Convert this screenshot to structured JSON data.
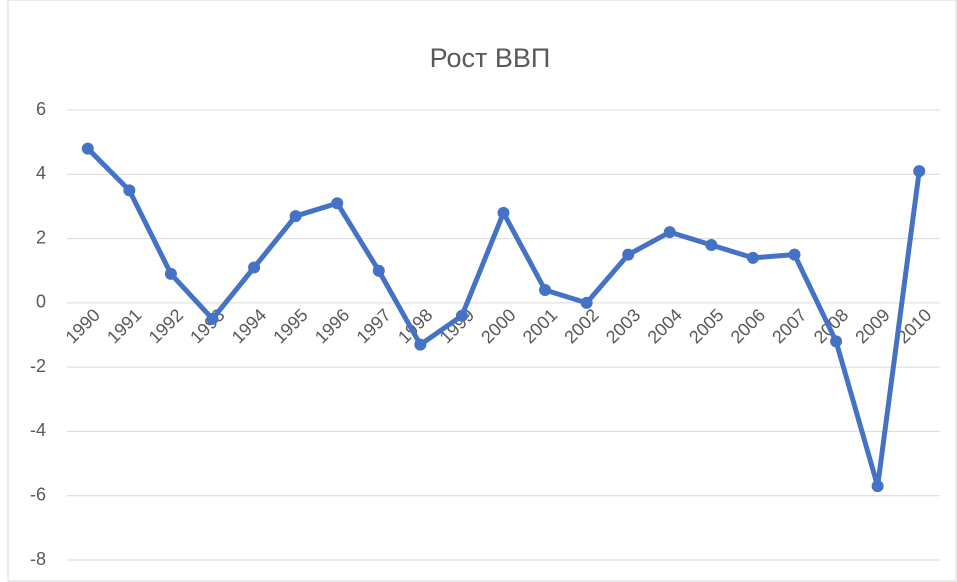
{
  "chart_data": {
    "type": "line",
    "title": "Рост ВВП",
    "categories": [
      "1990",
      "1991",
      "1992",
      "1993",
      "1994",
      "1995",
      "1996",
      "1997",
      "1998",
      "1999",
      "2000",
      "2001",
      "2002",
      "2003",
      "2004",
      "2005",
      "2006",
      "2007",
      "2008",
      "2009",
      "2010"
    ],
    "series": [
      {
        "name": "Рост ВВП",
        "color": "#4472c4",
        "values": [
          4.8,
          3.5,
          0.9,
          -0.5,
          1.1,
          2.7,
          3.1,
          1.0,
          -1.3,
          -0.4,
          2.8,
          0.4,
          0.0,
          1.5,
          2.2,
          1.8,
          1.4,
          1.5,
          -1.2,
          -5.7,
          4.1
        ]
      }
    ],
    "ylim": [
      -8,
      6
    ],
    "yticks": [
      -8,
      -6,
      -4,
      -2,
      0,
      2,
      4,
      6
    ],
    "grid": true
  }
}
